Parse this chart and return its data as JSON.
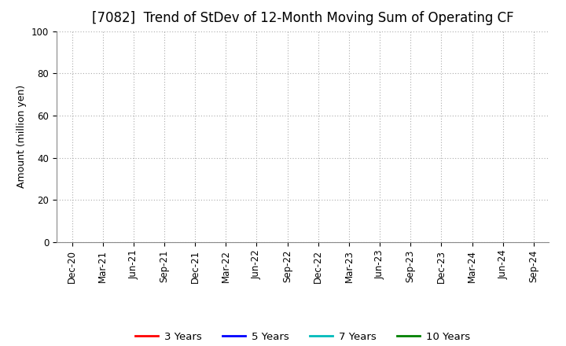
{
  "title": "[7082]  Trend of StDev of 12-Month Moving Sum of Operating CF",
  "ylabel": "Amount (million yen)",
  "ylim": [
    0,
    100
  ],
  "yticks": [
    0,
    20,
    40,
    60,
    80,
    100
  ],
  "x_labels": [
    "Dec-20",
    "Mar-21",
    "Jun-21",
    "Sep-21",
    "Dec-21",
    "Mar-22",
    "Jun-22",
    "Sep-22",
    "Dec-22",
    "Mar-23",
    "Jun-23",
    "Sep-23",
    "Dec-23",
    "Mar-24",
    "Jun-24",
    "Sep-24"
  ],
  "legend_entries": [
    {
      "label": "3 Years",
      "color": "#FF0000"
    },
    {
      "label": "5 Years",
      "color": "#0000FF"
    },
    {
      "label": "7 Years",
      "color": "#00BBBB"
    },
    {
      "label": "10 Years",
      "color": "#008000"
    }
  ],
  "background_color": "#FFFFFF",
  "plot_bg_color": "#FFFFFF",
  "grid_color": "#AAAAAA",
  "title_fontsize": 12,
  "axis_label_fontsize": 9,
  "tick_fontsize": 8.5,
  "legend_fontsize": 9.5
}
